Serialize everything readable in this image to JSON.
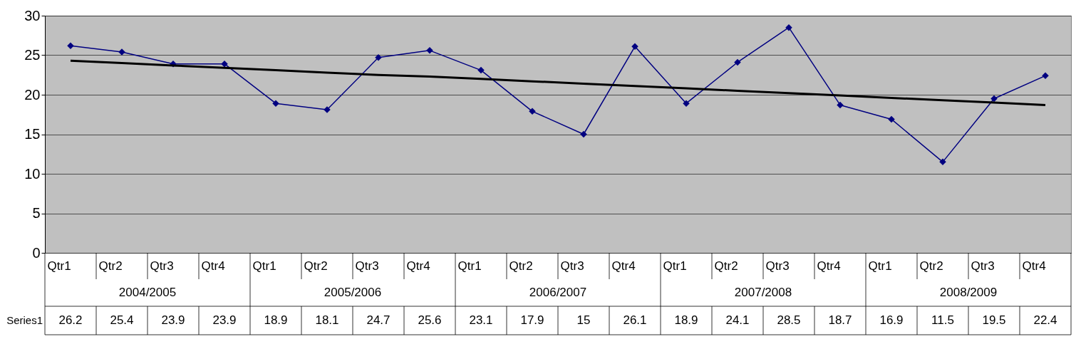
{
  "chart_data": {
    "type": "line",
    "categories": [
      "Qtr1",
      "Qtr2",
      "Qtr3",
      "Qtr4",
      "Qtr1",
      "Qtr2",
      "Qtr3",
      "Qtr4",
      "Qtr1",
      "Qtr2",
      "Qtr3",
      "Qtr4",
      "Qtr1",
      "Qtr2",
      "Qtr3",
      "Qtr4",
      "Qtr1",
      "Qtr2",
      "Qtr3",
      "Qtr4"
    ],
    "annotations": [
      "2004/2005",
      "2005/2006",
      "2006/2007",
      "2007/2008",
      "2008/2009"
    ],
    "series": [
      {
        "name": "Series1",
        "color": "#000080",
        "marker": "diamond",
        "values": [
          26.2,
          25.4,
          23.9,
          23.9,
          18.9,
          18.1,
          24.7,
          25.6,
          23.1,
          17.9,
          15,
          26.1,
          18.9,
          24.1,
          28.5,
          18.7,
          16.9,
          11.5,
          19.5,
          22.4
        ],
        "value_labels": [
          "26.2",
          "25.4",
          "23.9",
          "23.9",
          "18.9",
          "18.1",
          "24.7",
          "25.6",
          "23.1",
          "17.9",
          "15",
          "26.1",
          "18.9",
          "24.1",
          "28.5",
          "18.7",
          "16.9",
          "11.5",
          "19.5",
          "22.4"
        ]
      },
      {
        "type": "line",
        "color": "#000000",
        "marker": "none",
        "values": [
          24.3,
          24.0,
          23.7,
          23.4,
          23.1,
          22.8,
          22.5,
          22.3,
          22.0,
          21.7,
          21.4,
          21.1,
          20.8,
          20.5,
          20.2,
          19.9,
          19.6,
          19.3,
          19.0,
          18.7
        ]
      }
    ],
    "ylim": [
      0,
      30
    ],
    "yticks": [
      0,
      5,
      10,
      15,
      20,
      25,
      30
    ],
    "grid": "y"
  }
}
